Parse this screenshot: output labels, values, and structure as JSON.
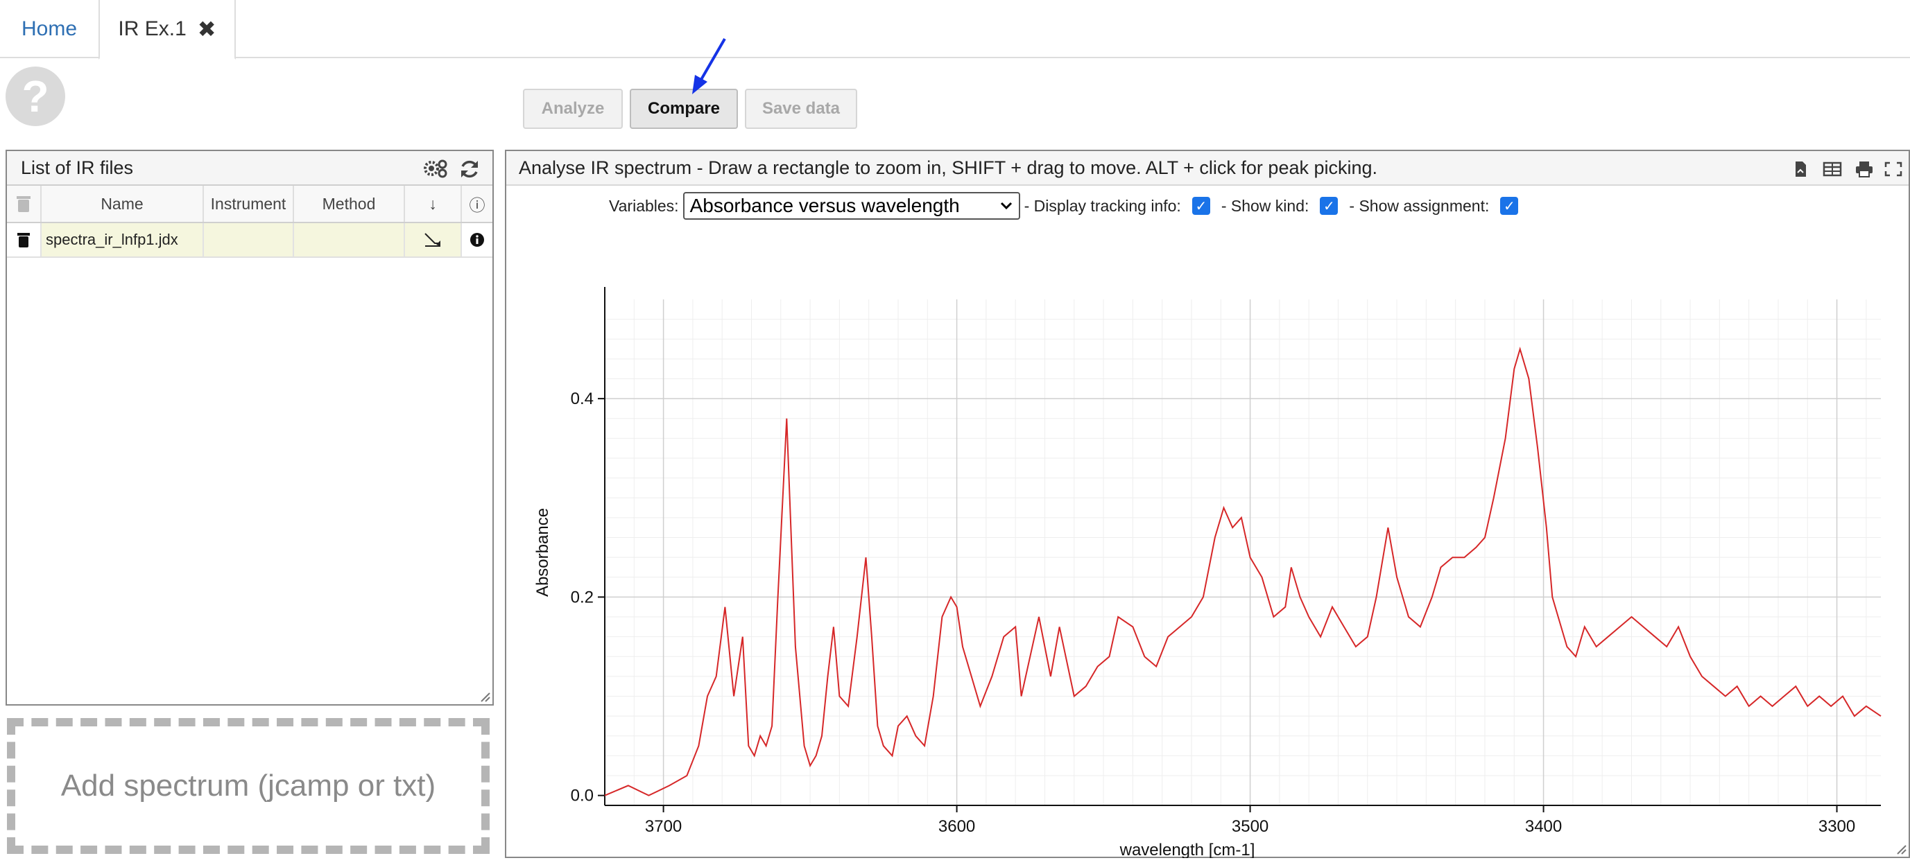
{
  "tabs": {
    "home": "Home",
    "active": "IR Ex.1",
    "close": "✖"
  },
  "help_glyph": "?",
  "toolbar": {
    "analyze": "Analyze",
    "compare": "Compare",
    "save": "Save data"
  },
  "file_list": {
    "title": "List of IR files",
    "columns": {
      "name": "Name",
      "instrument": "Instrument",
      "method": "Method",
      "sort": "↓",
      "info": "ⓘ"
    },
    "rows": [
      {
        "name": "spectra_ir_lnfp1.jdx",
        "instrument": "",
        "method": ""
      }
    ],
    "drop_text": "Add spectrum (jcamp or txt)"
  },
  "spectrum": {
    "header": "Analyse IR spectrum - Draw a rectangle to zoom in, SHIFT + drag to move. ALT + click for peak picking.",
    "variables_label": "Variables:",
    "variables_value": "Absorbance versus wavelength",
    "tracking_label": "- Display tracking info:",
    "kind_label": "- Show kind:",
    "assignment_label": "- Show assignment:",
    "accent_color": "#1a73e8"
  },
  "chart_data": {
    "type": "line",
    "xlabel": "wavelength [cm-1]",
    "ylabel": "Absorbance",
    "xlim": [
      3720,
      3285
    ],
    "ylim": [
      -0.01,
      0.5
    ],
    "x_reversed": true,
    "x_ticks": [
      3700,
      3600,
      3500,
      3400,
      3300
    ],
    "y_ticks": [
      0.0,
      0.2,
      0.4
    ],
    "y_tick_labels": [
      "0.0",
      "0.2",
      "0.4"
    ],
    "grid": true,
    "line_color": "#d62728",
    "series": [
      {
        "x": [
          3720,
          3712,
          3705,
          3698,
          3692,
          3688,
          3685,
          3682,
          3679,
          3676,
          3673,
          3671,
          3669,
          3667,
          3665,
          3663,
          3661,
          3658,
          3655,
          3652,
          3650,
          3648,
          3646,
          3644,
          3642,
          3640,
          3637,
          3634,
          3631,
          3629,
          3627,
          3625,
          3622,
          3620,
          3617,
          3614,
          3611,
          3608,
          3605,
          3602,
          3600,
          3598,
          3595,
          3592,
          3588,
          3584,
          3580,
          3578,
          3575,
          3572,
          3568,
          3565,
          3560,
          3556,
          3552,
          3548,
          3545,
          3540,
          3536,
          3532,
          3528,
          3524,
          3520,
          3516,
          3512,
          3509,
          3506,
          3503,
          3500,
          3496,
          3492,
          3488,
          3486,
          3483,
          3480,
          3476,
          3472,
          3468,
          3464,
          3460,
          3457,
          3453,
          3450,
          3446,
          3442,
          3438,
          3435,
          3431,
          3427,
          3423,
          3420,
          3417,
          3413,
          3410,
          3408,
          3405,
          3402,
          3399,
          3397,
          3395,
          3392,
          3389,
          3386,
          3382,
          3378,
          3374,
          3370,
          3366,
          3362,
          3358,
          3354,
          3350,
          3346,
          3342,
          3338,
          3334,
          3330,
          3326,
          3322,
          3318,
          3314,
          3310,
          3306,
          3302,
          3298,
          3294,
          3290,
          3285
        ],
        "y": [
          0.0,
          0.01,
          0.0,
          0.01,
          0.02,
          0.05,
          0.1,
          0.12,
          0.19,
          0.1,
          0.16,
          0.05,
          0.04,
          0.06,
          0.05,
          0.07,
          0.2,
          0.38,
          0.15,
          0.05,
          0.03,
          0.04,
          0.06,
          0.12,
          0.17,
          0.1,
          0.09,
          0.16,
          0.24,
          0.16,
          0.07,
          0.05,
          0.04,
          0.07,
          0.08,
          0.06,
          0.05,
          0.1,
          0.18,
          0.2,
          0.19,
          0.15,
          0.12,
          0.09,
          0.12,
          0.16,
          0.17,
          0.1,
          0.14,
          0.18,
          0.12,
          0.17,
          0.1,
          0.11,
          0.13,
          0.14,
          0.18,
          0.17,
          0.14,
          0.13,
          0.16,
          0.17,
          0.18,
          0.2,
          0.26,
          0.29,
          0.27,
          0.28,
          0.24,
          0.22,
          0.18,
          0.19,
          0.23,
          0.2,
          0.18,
          0.16,
          0.19,
          0.17,
          0.15,
          0.16,
          0.2,
          0.27,
          0.22,
          0.18,
          0.17,
          0.2,
          0.23,
          0.24,
          0.24,
          0.25,
          0.26,
          0.3,
          0.36,
          0.43,
          0.45,
          0.42,
          0.35,
          0.27,
          0.2,
          0.18,
          0.15,
          0.14,
          0.17,
          0.15,
          0.16,
          0.17,
          0.18,
          0.17,
          0.16,
          0.15,
          0.17,
          0.14,
          0.12,
          0.11,
          0.1,
          0.11,
          0.09,
          0.1,
          0.09,
          0.1,
          0.11,
          0.09,
          0.1,
          0.09,
          0.1,
          0.08,
          0.09,
          0.08
        ]
      }
    ]
  }
}
